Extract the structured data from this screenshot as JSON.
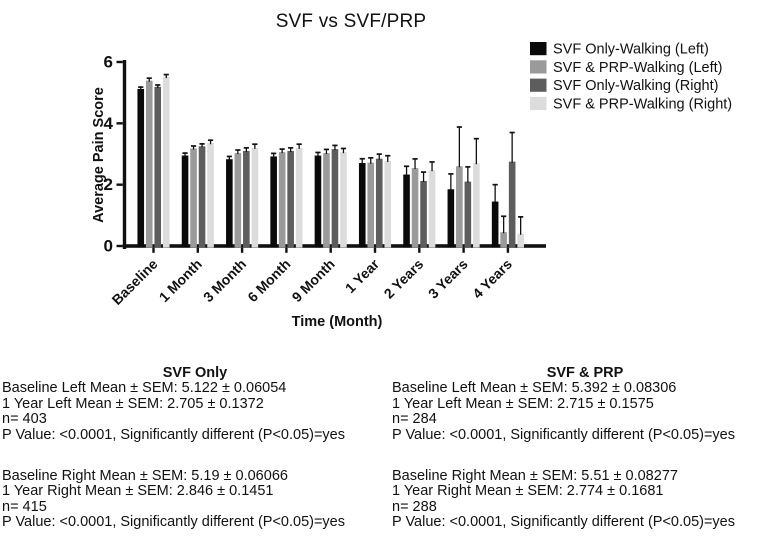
{
  "chart_data": {
    "type": "bar",
    "title": "SVF vs SVF/PRP",
    "xlabel": "Time (Month)",
    "ylabel": "Average Pain Score",
    "ylim": [
      0,
      6
    ],
    "yticks": [
      0,
      2,
      4,
      6
    ],
    "grid": false,
    "legend_position": "top-right",
    "error_bars": "SEM, upper only",
    "categories": [
      "Baseline",
      "1 Month",
      "3 Month",
      "6 Month",
      "9 Month",
      "1 Year",
      "2 Years",
      "3 Years",
      "4 Years"
    ],
    "series": [
      {
        "name": "SVF Only-Walking (Left)",
        "color": "#0a0a0a",
        "values": [
          5.122,
          2.95,
          2.83,
          2.92,
          2.95,
          2.705,
          2.33,
          1.85,
          1.45
        ],
        "sem": [
          0.06,
          0.08,
          0.09,
          0.1,
          0.1,
          0.14,
          0.27,
          0.5,
          0.55
        ]
      },
      {
        "name": "SVF & PRP-Walking (Left)",
        "color": "#9a9a9a",
        "values": [
          5.392,
          3.18,
          3.03,
          3.06,
          3.03,
          2.715,
          2.54,
          2.6,
          0.45
        ],
        "sem": [
          0.08,
          0.08,
          0.1,
          0.1,
          0.12,
          0.16,
          0.3,
          1.28,
          0.52
        ]
      },
      {
        "name": "SVF Only-Walking (Right)",
        "color": "#5d5d5d",
        "values": [
          5.19,
          3.25,
          3.1,
          3.1,
          3.16,
          2.846,
          2.12,
          2.1,
          2.75
        ],
        "sem": [
          0.06,
          0.08,
          0.1,
          0.1,
          0.12,
          0.15,
          0.29,
          0.48,
          0.95
        ]
      },
      {
        "name": "SVF & PRP-Walking (Right)",
        "color": "#dcdcdc",
        "values": [
          5.51,
          3.35,
          3.2,
          3.2,
          3.06,
          2.774,
          2.47,
          2.7,
          0.4
        ],
        "sem": [
          0.08,
          0.1,
          0.12,
          0.12,
          0.12,
          0.17,
          0.27,
          0.8,
          0.55
        ]
      }
    ]
  },
  "stats": {
    "columns": [
      {
        "title": "SVF Only",
        "left_lines": [
          "Baseline Left Mean ± SEM: 5.122 ± 0.06054",
          "1 Year Left Mean ± SEM: 2.705 ± 0.1372",
          "n= 403",
          "P Value: <0.0001, Significantly different (P<0.05)=yes"
        ],
        "right_lines": [
          "Baseline Right Mean ± SEM: 5.19 ± 0.06066",
          "1 Year Right Mean ± SEM: 2.846 ± 0.1451",
          "n= 415",
          "P Value: <0.0001, Significantly different (P<0.05)=yes"
        ]
      },
      {
        "title": "SVF & PRP",
        "left_lines": [
          "Baseline Left Mean ± SEM: 5.392 ± 0.08306",
          "1 Year Left Mean ± SEM: 2.715 ± 0.1575",
          "n= 284",
          "P Value: <0.0001, Significantly different (P<0.05)=yes"
        ],
        "right_lines": [
          "Baseline Right Mean ± SEM: 5.51 ± 0.08277",
          "1 Year Right Mean ± SEM: 2.774 ± 0.1681",
          "n= 288",
          "P Value: <0.0001, Significantly different (P<0.05)=yes"
        ]
      }
    ]
  }
}
